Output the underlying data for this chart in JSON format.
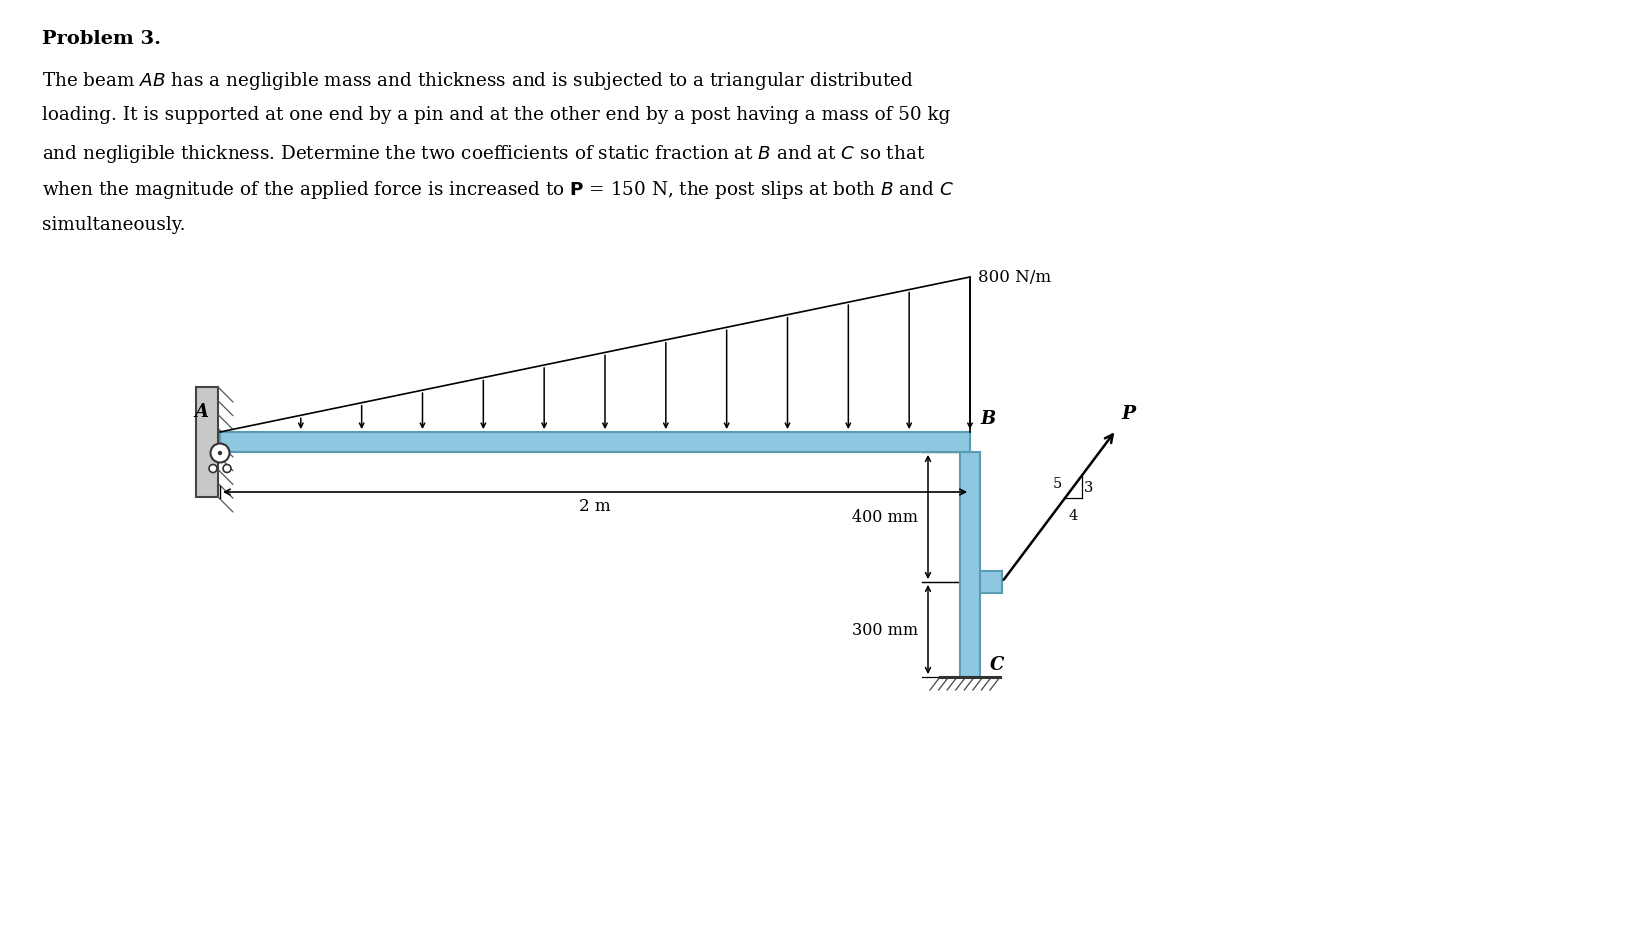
{
  "bg_color": "#ffffff",
  "beam_color": "#8dc8e0",
  "beam_outline": "#5a9ab5",
  "text_color": "#000000",
  "fig_width": 16.52,
  "fig_height": 9.28,
  "label_800": "800 N/m",
  "label_2m": "2 m",
  "label_400mm": "400 mm",
  "label_300mm": "300 mm",
  "label_A": "A",
  "label_B": "B",
  "label_C": "C",
  "label_P": "P"
}
